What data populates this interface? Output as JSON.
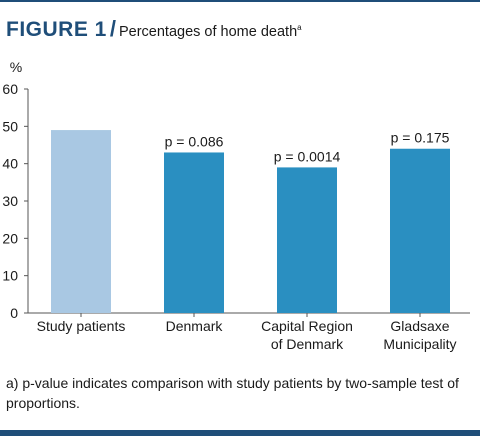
{
  "header": {
    "label": "FIGURE 1",
    "separator": "/",
    "title": "Percentages of home death",
    "title_superscript": "a"
  },
  "chart_data": {
    "type": "bar",
    "ylabel": "%",
    "xlabel": "",
    "ylim": [
      0,
      60
    ],
    "yticks": [
      0,
      10,
      20,
      30,
      40,
      50,
      60
    ],
    "grid": false,
    "categories": [
      [
        "Study patients"
      ],
      [
        "Denmark"
      ],
      [
        "Capital Region",
        "of Denmark"
      ],
      [
        "Gladsaxe",
        "Municipality"
      ]
    ],
    "values": [
      49,
      43,
      39,
      44
    ],
    "annotations": [
      "",
      "p = 0.086",
      "p = 0.0014",
      "p = 0.175"
    ],
    "colors": [
      "#a9c8e3",
      "#2a8fc1",
      "#2a8fc1",
      "#2a8fc1"
    ]
  },
  "footnote": "a) p-value indicates comparison with study patients by two-sample test of proportions."
}
